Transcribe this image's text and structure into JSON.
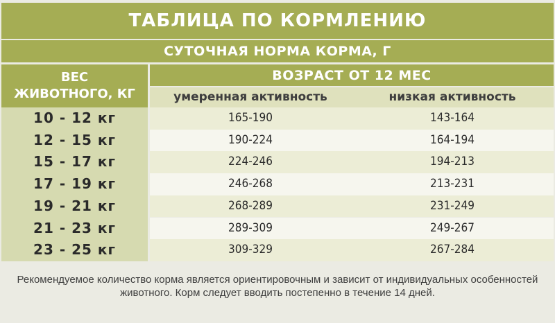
{
  "title": "ТАБЛИЦА ПО КОРМЛЕНИЮ",
  "subtitle": "СУТОЧНАЯ НОРМА КОРМА, Г",
  "weight_header": {
    "line1": "ВЕС",
    "line2": "ЖИВОТНОГО, КГ"
  },
  "age_header": "ВОЗРАСТ ОТ 12 МЕС",
  "activity_headers": [
    "умеренная активность",
    "низкая активность"
  ],
  "rows": [
    {
      "weight": "10 - 12 кг",
      "moderate": "165-190",
      "low": "143-164"
    },
    {
      "weight": "12 - 15 кг",
      "moderate": "190-224",
      "low": "164-194"
    },
    {
      "weight": "15 - 17 кг",
      "moderate": "224-246",
      "low": "194-213"
    },
    {
      "weight": "17 - 19 кг",
      "moderate": "246-268",
      "low": "213-231"
    },
    {
      "weight": "19 - 21 кг",
      "moderate": "268-289",
      "low": "231-249"
    },
    {
      "weight": "21 - 23 кг",
      "moderate": "289-309",
      "low": "249-267"
    },
    {
      "weight": "23 - 25 кг",
      "moderate": "309-329",
      "low": "267-284"
    }
  ],
  "note": {
    "line1": "Рекомендуемое количество корма является ориентировочным и зависит от индивидуальных особенностей",
    "line2": "животного. Корм следует вводить постепенно в течение 14 дней."
  },
  "colors": {
    "header_green": "#a5ad54",
    "light_green": "#d6dab0",
    "background": "#ebebe3"
  }
}
